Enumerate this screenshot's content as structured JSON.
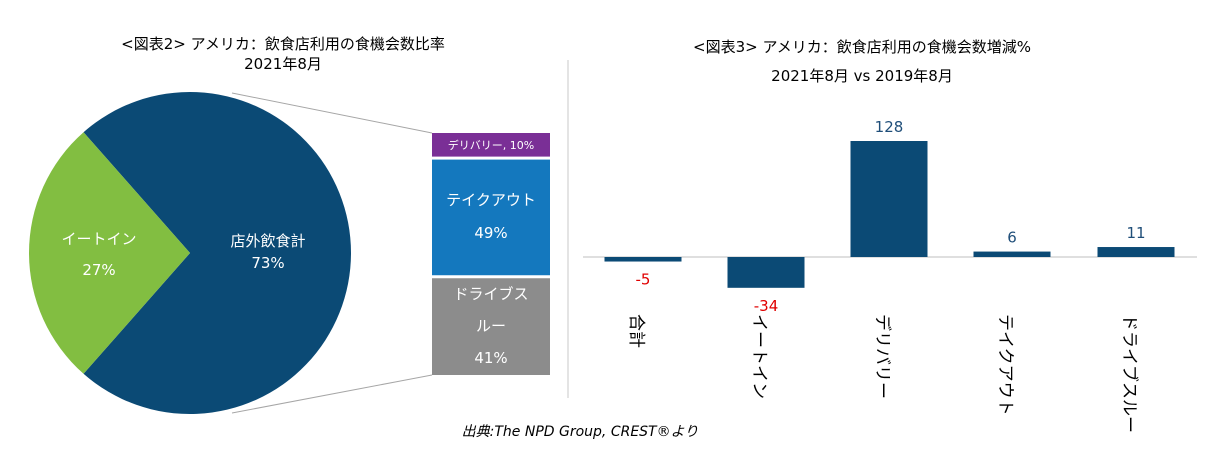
{
  "chart_data": [
    {
      "type": "pie",
      "title": "<図表2> アメリカ：飲食店利用の食機会数比率",
      "subtitle": "2021年8月",
      "slices": [
        {
          "label": "店外飲食計",
          "value": 73,
          "value_label": "73%",
          "color": "#0b4a75"
        },
        {
          "label": "イートイン",
          "value": 27,
          "value_label": "27%",
          "color": "#82be41"
        }
      ],
      "breakdown": {
        "of": "店外飲食計",
        "segments": [
          {
            "label": "デリバリー, 10%",
            "value": 10,
            "color": "#7a2f96"
          },
          {
            "label": "テイクアウト",
            "value": 49,
            "value_label": "49%",
            "color": "#1478be"
          },
          {
            "label": "ドライブスルー",
            "label_lines": [
              "ドライブス",
              "ルー"
            ],
            "value": 41,
            "value_label": "41%",
            "color": "#8c8c8c"
          }
        ]
      }
    },
    {
      "type": "bar",
      "title": "<図表3> アメリカ：飲食店利用の食機会数増減%",
      "subtitle": "2021年8月 vs 2019年8月",
      "categories": [
        "合計",
        "イートイン",
        "デリバリー",
        "テイクアウト",
        "ドライブスルー"
      ],
      "values": [
        -5,
        -34,
        128,
        6,
        11
      ],
      "value_labels": [
        "-5",
        "-34",
        "128",
        "6",
        "11"
      ],
      "bar_color": "#0b4a75",
      "positive_label_color": "#1f4e79",
      "negative_label_color": "#e00000",
      "ylim": [
        -40,
        135
      ]
    }
  ],
  "source_note": "出典:The NPD Group, CREST®より"
}
